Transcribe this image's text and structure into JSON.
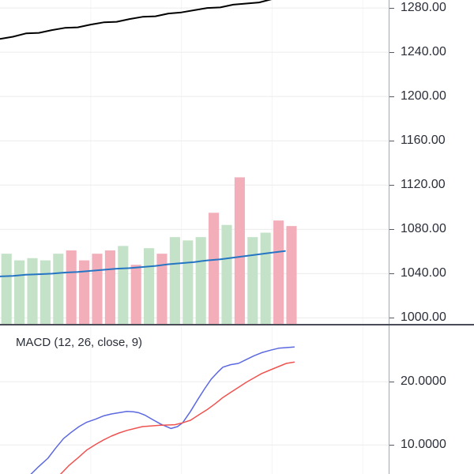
{
  "colors": {
    "background": "#ffffff",
    "grid_h": "#ececec",
    "grid_v": "#f4f4f4",
    "axis_line": "#a6a9b0",
    "tick_mark": "#555961",
    "tick_text": "#2a2e39",
    "panel_divider": "#4a4d57"
  },
  "chart_data": [
    {
      "type": "mixed",
      "panel": "price",
      "xlim": [
        0,
        30
      ],
      "ylim": [
        994.6,
        1287.2
      ],
      "y_ticks": {
        "values": [
          1280,
          1240,
          1200,
          1160,
          1120,
          1080,
          1040,
          1000
        ],
        "labels": [
          "1280.00",
          "1240.00",
          "1200.00",
          "1160.00",
          "1120.00",
          "1080.00",
          "1040.00",
          "1000.00"
        ]
      },
      "x_gridlines": [
        7,
        14,
        21,
        28
      ],
      "series": [
        {
          "name": "volume",
          "type": "bar",
          "up_color": "#c3e2c7",
          "down_color": "#f2aeb9",
          "values": [
            1058,
            1052,
            1054,
            1052,
            1058,
            1061,
            1052,
            1058,
            1061,
            1065,
            1048,
            1063,
            1058,
            1073,
            1070,
            1073,
            1095,
            1084,
            1127,
            1073,
            1077,
            1088,
            1083
          ],
          "directions": [
            "up",
            "up",
            "up",
            "up",
            "up",
            "down",
            "down",
            "down",
            "down",
            "up",
            "down",
            "up",
            "down",
            "up",
            "up",
            "up",
            "down",
            "up",
            "down",
            "up",
            "up",
            "down",
            "down"
          ]
        },
        {
          "name": "price",
          "type": "line",
          "color": "#000000",
          "width": 2,
          "x": [
            0,
            1,
            2,
            3,
            4,
            5,
            6,
            7,
            8,
            9,
            10,
            11,
            12,
            13,
            14,
            15,
            16,
            17,
            18,
            19,
            20,
            21
          ],
          "values": [
            1252,
            1254,
            1257,
            1257.5,
            1260,
            1262,
            1262.5,
            1265,
            1267,
            1267.5,
            1270,
            1272,
            1272.5,
            1275,
            1276,
            1278,
            1280,
            1280.5,
            1283,
            1284,
            1285,
            1288
          ]
        },
        {
          "name": "moving-average",
          "type": "line",
          "color": "#2575c4",
          "width": 2,
          "x": [
            0,
            1,
            2,
            3,
            4,
            5,
            6,
            7,
            8,
            9,
            10,
            11,
            12,
            13,
            14,
            15,
            16,
            17,
            18,
            19,
            20,
            21,
            22
          ],
          "values": [
            1037.5,
            1038,
            1039,
            1039.5,
            1040,
            1041,
            1041.5,
            1042.5,
            1043.5,
            1044.5,
            1045,
            1046,
            1047,
            1048.5,
            1049.5,
            1050.5,
            1052,
            1053,
            1054.5,
            1056,
            1057.5,
            1059,
            1060.5
          ]
        }
      ]
    },
    {
      "type": "line",
      "panel": "macd",
      "title": "MACD (12, 26, close, 9)",
      "xlim": [
        0,
        30
      ],
      "ylim": [
        5.4,
        28.9
      ],
      "y_ticks": {
        "values": [
          20,
          10
        ],
        "labels": [
          "20.0000",
          "10.0000"
        ]
      },
      "x_gridlines": [
        7,
        14,
        21,
        28
      ],
      "series": [
        {
          "name": "macd",
          "type": "line",
          "color": "#5b68e0",
          "width": 1.5,
          "x": [
            2.4,
            3.0,
            3.7,
            4.3,
            4.9,
            5.5,
            6.1,
            6.7,
            7.4,
            8.0,
            8.6,
            9.2,
            9.8,
            10.3,
            10.7,
            11.2,
            11.7,
            12.4,
            13.2,
            13.7,
            14.1,
            14.7,
            15.3,
            15.8,
            16.3,
            16.8,
            17.2,
            17.8,
            18.4,
            19.0,
            19.6,
            20.2,
            20.9,
            21.5,
            22.1,
            22.7
          ],
          "values": [
            5.4,
            6.6,
            7.9,
            9.5,
            11.0,
            12.0,
            12.9,
            13.6,
            14.1,
            14.6,
            14.9,
            15.1,
            15.3,
            15.25,
            15.1,
            14.7,
            14.1,
            13.3,
            12.6,
            12.9,
            13.5,
            15.3,
            17.3,
            18.9,
            20.4,
            21.5,
            22.3,
            22.7,
            22.9,
            23.5,
            24.1,
            24.6,
            25.0,
            25.3,
            25.4,
            25.5
          ]
        },
        {
          "name": "signal",
          "type": "line",
          "color": "#ef5350",
          "width": 1.5,
          "x": [
            4.6,
            5.3,
            6.1,
            6.7,
            7.4,
            8.0,
            8.6,
            9.2,
            9.8,
            10.4,
            11.0,
            11.6,
            12.3,
            12.9,
            13.5,
            14.1,
            14.7,
            15.3,
            16.0,
            16.6,
            17.2,
            17.8,
            18.4,
            19.0,
            19.6,
            20.2,
            20.9,
            21.5,
            22.1,
            22.7
          ],
          "values": [
            5.2,
            6.7,
            8.1,
            9.2,
            10.1,
            10.8,
            11.4,
            11.9,
            12.3,
            12.6,
            12.9,
            13.0,
            13.1,
            13.15,
            13.2,
            13.5,
            13.9,
            14.7,
            15.6,
            16.5,
            17.5,
            18.3,
            19.1,
            19.9,
            20.6,
            21.3,
            21.9,
            22.4,
            22.9,
            23.1
          ]
        }
      ]
    }
  ]
}
